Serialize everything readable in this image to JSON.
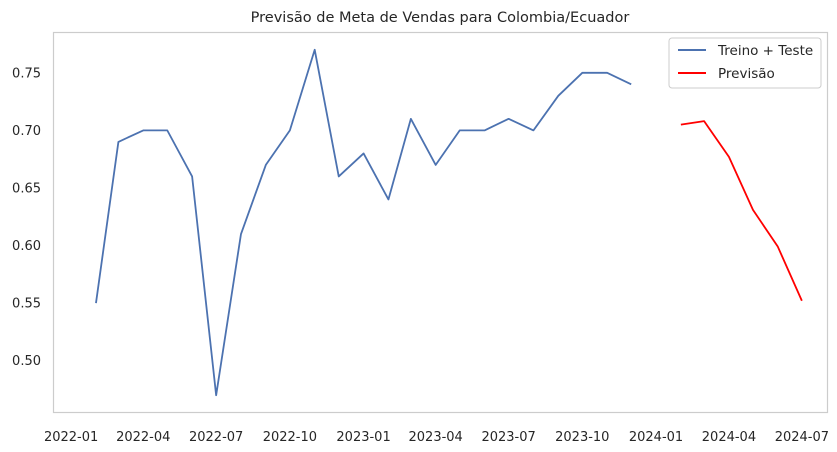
{
  "chart_data": {
    "type": "line",
    "title": "Previsão de Meta de Vendas para Colombia/Ecuador",
    "xlabel": "",
    "ylabel": "",
    "grid": false,
    "legend_position": "top-right",
    "x_ticks": [
      "2022-01",
      "2022-04",
      "2022-07",
      "2022-10",
      "2023-01",
      "2023-04",
      "2023-07",
      "2023-10",
      "2024-01",
      "2024-04",
      "2024-07"
    ],
    "y_ticks": [
      "0.50",
      "0.55",
      "0.60",
      "0.65",
      "0.70",
      "0.75"
    ],
    "xlim": [
      "2021-12-10",
      "2024-08-02"
    ],
    "ylim": [
      0.455,
      0.785
    ],
    "series": [
      {
        "name": "Treino + Teste",
        "color": "#4c72b0",
        "points": [
          [
            "2022-02-01",
            0.55
          ],
          [
            "2022-03-01",
            0.69
          ],
          [
            "2022-04-01",
            0.7
          ],
          [
            "2022-05-01",
            0.7
          ],
          [
            "2022-06-01",
            0.66
          ],
          [
            "2022-07-01",
            0.47
          ],
          [
            "2022-08-01",
            0.61
          ],
          [
            "2022-09-01",
            0.67
          ],
          [
            "2022-10-01",
            0.7
          ],
          [
            "2022-11-01",
            0.77
          ],
          [
            "2022-12-01",
            0.66
          ],
          [
            "2023-01-01",
            0.68
          ],
          [
            "2023-02-01",
            0.64
          ],
          [
            "2023-03-01",
            0.71
          ],
          [
            "2023-04-01",
            0.67
          ],
          [
            "2023-05-01",
            0.7
          ],
          [
            "2023-06-01",
            0.7
          ],
          [
            "2023-07-01",
            0.71
          ],
          [
            "2023-08-01",
            0.7
          ],
          [
            "2023-09-01",
            0.73
          ],
          [
            "2023-10-01",
            0.75
          ],
          [
            "2023-11-01",
            0.75
          ],
          [
            "2023-12-01",
            0.74
          ]
        ]
      },
      {
        "name": "Previsão",
        "color": "#ff0000",
        "points": [
          [
            "2024-02-01",
            0.705
          ],
          [
            "2024-03-01",
            0.708
          ],
          [
            "2024-04-01",
            0.677
          ],
          [
            "2024-05-01",
            0.631
          ],
          [
            "2024-06-01",
            0.599
          ],
          [
            "2024-07-01",
            0.552
          ]
        ]
      }
    ]
  }
}
